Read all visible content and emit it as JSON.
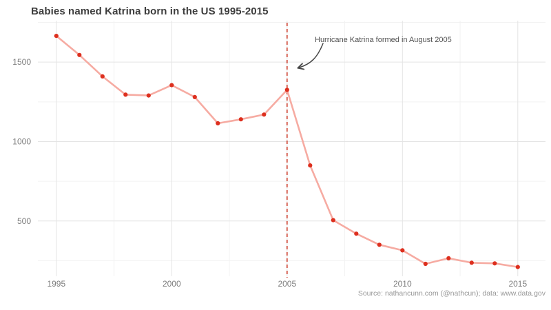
{
  "header": {
    "title": "Babies named Katrina born in the US 1995-2015"
  },
  "annotation": {
    "label": "Hurricane Katrina formed in August 2005"
  },
  "caption": "Source: nathancunn.com (@nathcun); data: www.data.gov",
  "colors": {
    "background": "#ffffff",
    "title_text": "#3d3d3d",
    "axis_text": "#7d7d7d",
    "caption_text": "#979797",
    "annotation_text": "#515151",
    "arrow": "#474747",
    "grid_major": "#e4e4e4",
    "grid_minor": "#f2f2f2",
    "line": "#f6aba2",
    "point": "#dd2f1e",
    "vline": "#cc3b2a"
  },
  "chart_data": {
    "type": "line",
    "title": "Babies named Katrina born in the US 1995-2015",
    "xlabel": "",
    "ylabel": "",
    "x": [
      1995,
      1996,
      1997,
      1998,
      1999,
      2000,
      2001,
      2002,
      2003,
      2004,
      2005,
      2006,
      2007,
      2008,
      2009,
      2010,
      2011,
      2012,
      2013,
      2014,
      2015
    ],
    "series": [
      {
        "name": "Babies named Katrina",
        "values": [
          1665,
          1545,
          1410,
          1295,
          1290,
          1355,
          1280,
          1115,
          1140,
          1170,
          1325,
          850,
          505,
          420,
          350,
          315,
          230,
          265,
          237,
          233,
          210
        ]
      }
    ],
    "x_ticks": [
      1995,
      2000,
      2005,
      2010,
      2015
    ],
    "y_ticks": [
      500,
      1000,
      1500
    ],
    "x_minor_ticks": [
      1997.5,
      2002.5,
      2007.5,
      2012.5
    ],
    "y_minor_ticks": [
      250,
      750,
      1250,
      1750
    ],
    "xlim": [
      1994.2,
      2016.2
    ],
    "ylim": [
      152,
      1761
    ],
    "grid": "on",
    "legend_position": "none",
    "vline_x": 2005,
    "annotation": "Hurricane Katrina formed in August 2005"
  }
}
